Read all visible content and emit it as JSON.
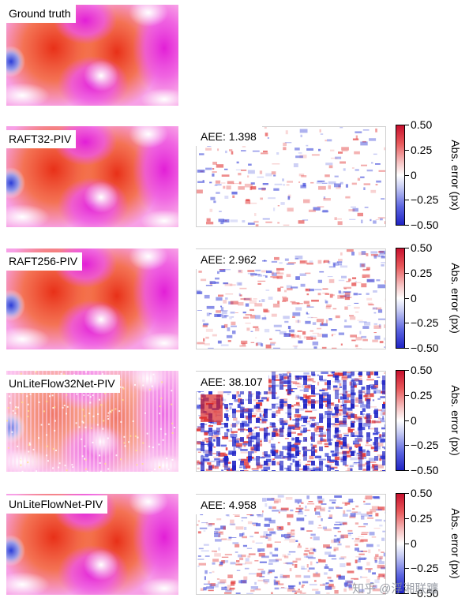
{
  "rows": [
    {
      "label": "Ground truth"
    },
    {
      "label": "RAFT32-PIV",
      "aee": "AEE: 1.398"
    },
    {
      "label": "RAFT256-PIV",
      "aee": "AEE: 2.962"
    },
    {
      "label": "UnLiteFlow32Net-PIV",
      "aee": "AEE: 38.107"
    },
    {
      "label": "UnLiteFlowNet-PIV",
      "aee": "AEE: 4.958"
    }
  ],
  "colorbar": {
    "ticks": [
      "0.50",
      "0.25",
      "0",
      "−0.25",
      "−0.50"
    ],
    "label": "Abs. error (px)",
    "colors": {
      "max": "#c8102e",
      "zero": "#ffffff",
      "min": "#1f23c4"
    }
  },
  "watermark": "知乎 @浮湘联躔"
}
